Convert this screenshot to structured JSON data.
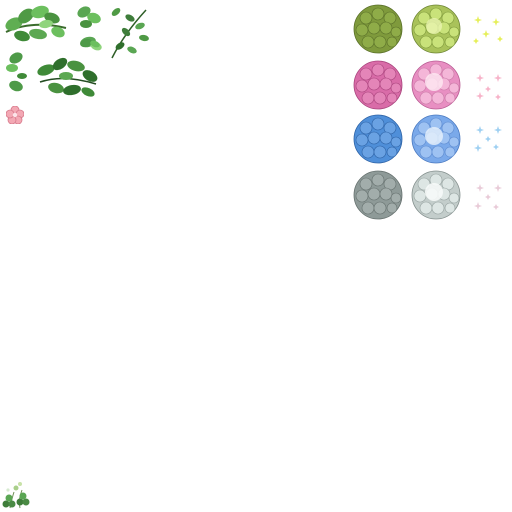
{
  "sprite_sheet": {
    "leaf_sprites": [
      {
        "name": "leafy-branch-sprite",
        "color": "#4f9a45"
      },
      {
        "name": "small-leaf-cluster-sprite",
        "color": "#5aa653"
      },
      {
        "name": "thin-stem-sprite",
        "color": "#3e7d3a"
      },
      {
        "name": "dark-leaf-cluster-sprite",
        "color": "#2f6f2c"
      },
      {
        "name": "leaf-pair-sprite",
        "color": "#4e9a48"
      }
    ],
    "flower_blossom": {
      "name": "pink-blossom-sprite",
      "color": "#f3a8b4"
    },
    "hydrangea_rows": [
      {
        "row": "olive",
        "dark": "#7f9a3c",
        "light": "#c9e27a",
        "sparkle": "#e6ef5a"
      },
      {
        "row": "pink",
        "dark": "#d96ca8",
        "light": "#f4b6d8",
        "sparkle": "#f7b3c9"
      },
      {
        "row": "blue",
        "dark": "#4f8fd9",
        "light": "#9ec2f2",
        "sparkle": "#9fd0f2"
      },
      {
        "row": "grey",
        "dark": "#8e9a98",
        "light": "#dde6e4",
        "sparkle": "#e9cbd8"
      }
    ],
    "clover_sprite": {
      "name": "clover-sprite",
      "color": "#4a8a44"
    }
  }
}
